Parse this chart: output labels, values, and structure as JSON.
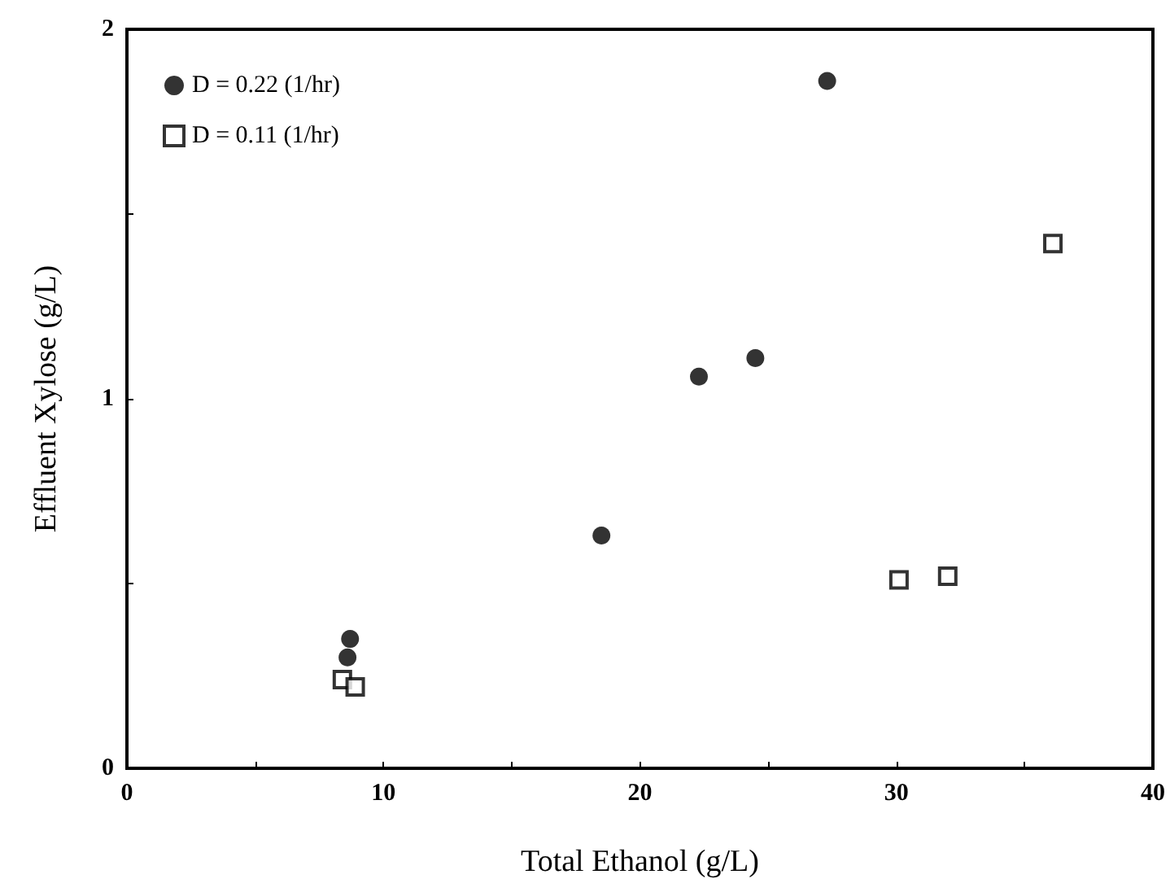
{
  "chart_data": {
    "type": "scatter",
    "xlabel": "Total Ethanol (g/L)",
    "ylabel": "Effluent Xylose (g/L)",
    "xlim": [
      0,
      40
    ],
    "xticks": [
      0,
      {
        "value": 5,
        "label": null
      },
      10,
      {
        "value": 15,
        "label": null
      },
      20,
      {
        "value": 25,
        "label": null
      },
      30,
      {
        "value": 35,
        "label": null
      },
      40
    ],
    "ylim": [
      0,
      2
    ],
    "yticks": [
      0,
      {
        "value": 0.5,
        "label": null
      },
      1,
      {
        "value": 1.5,
        "label": null
      },
      2
    ],
    "grid": false,
    "legend": "top left",
    "series": [
      {
        "name": "D = 0.22 (1/hr)",
        "color": "#000000",
        "marker": "circle",
        "x": [
          8.7,
          8.6,
          18.5,
          22.3,
          24.5,
          27.3
        ],
        "values": [
          0.35,
          0.3,
          0.63,
          1.06,
          1.11,
          1.86
        ]
      },
      {
        "name": "D = 0.11 (1/hr)",
        "color": "#000000",
        "marker": "square",
        "x": [
          8.4,
          8.9,
          30.1,
          32.0,
          36.1
        ],
        "values": [
          0.24,
          0.22,
          0.51,
          0.52,
          1.42
        ]
      }
    ]
  }
}
